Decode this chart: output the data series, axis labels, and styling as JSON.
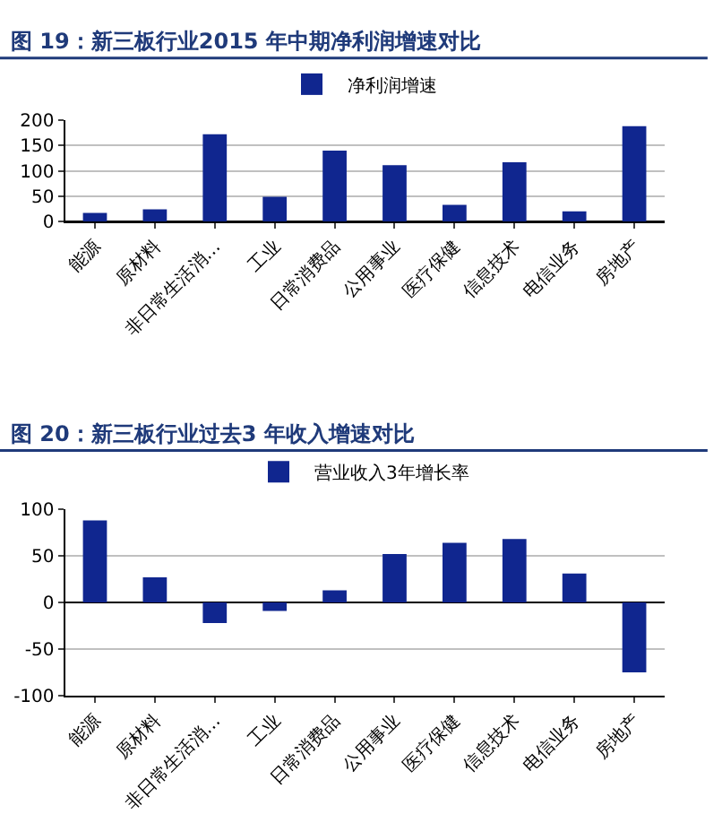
{
  "chart_data": [
    {
      "type": "bar",
      "title": "图 19：新三板行业2015 年中期净利润增速对比",
      "categories": [
        "能源",
        "原材料",
        "非日常生活消…",
        "工业",
        "日常消费品",
        "公用事业",
        "医疗保健",
        "信息技术",
        "电信业务",
        "房地产"
      ],
      "series": [
        {
          "name": "净利润增速",
          "color": "#10268f",
          "values": [
            17,
            24,
            172,
            49,
            140,
            111,
            33,
            117,
            20,
            188
          ]
        }
      ],
      "ylim": [
        0,
        200
      ],
      "yticks": [
        0,
        50,
        100,
        150,
        200
      ],
      "grid": "y",
      "legend": "top"
    },
    {
      "type": "bar",
      "title": "图 20：新三板行业过去3 年收入增速对比",
      "categories": [
        "能源",
        "原材料",
        "非日常生活消…",
        "工业",
        "日常消费品",
        "公用事业",
        "医疗保健",
        "信息技术",
        "电信业务",
        "房地产"
      ],
      "series": [
        {
          "name": "营业收入3年增长率",
          "color": "#10268f",
          "values": [
            88,
            27,
            -22,
            -9,
            13,
            52,
            64,
            68,
            31,
            -75
          ]
        }
      ],
      "ylim": [
        -100,
        100
      ],
      "yticks": [
        -100,
        -50,
        0,
        50,
        100
      ],
      "grid": "y",
      "legend": "top"
    }
  ]
}
